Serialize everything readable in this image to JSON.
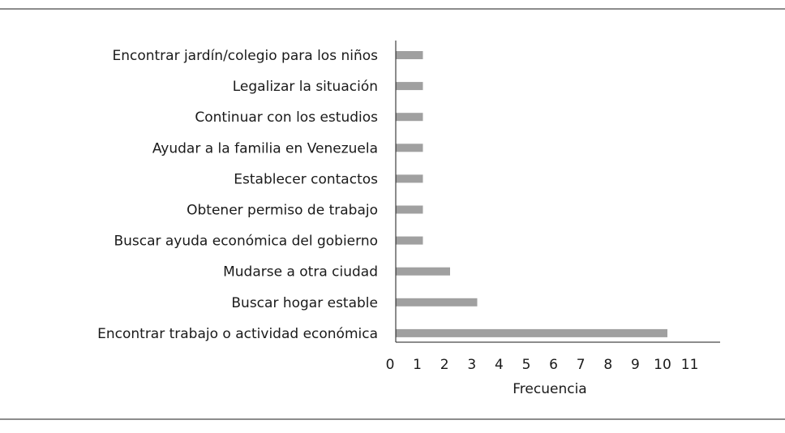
{
  "chart_data": {
    "type": "bar",
    "orientation": "horizontal",
    "categories": [
      "Encontrar jardín/colegio para los niños",
      "Legalizar la situación",
      "Continuar con los estudios",
      "Ayudar a la familia en Venezuela",
      "Establecer contactos",
      "Obtener permiso de trabajo",
      "Buscar ayuda económica del gobierno",
      "Mudarse a otra ciudad",
      "Buscar hogar estable",
      "Encontrar trabajo o actividad económica"
    ],
    "values": [
      1,
      1,
      1,
      1,
      1,
      1,
      1,
      2,
      3,
      10
    ],
    "xlabel": "Frecuencia",
    "ylabel": "",
    "xlim": [
      0,
      11
    ],
    "xticks": [
      0,
      1,
      2,
      3,
      4,
      5,
      6,
      7,
      8,
      9,
      10,
      11
    ],
    "bar_color": "#a0a0a0",
    "axis_color": "#1a1a1a",
    "grid": false,
    "legend": "none"
  }
}
